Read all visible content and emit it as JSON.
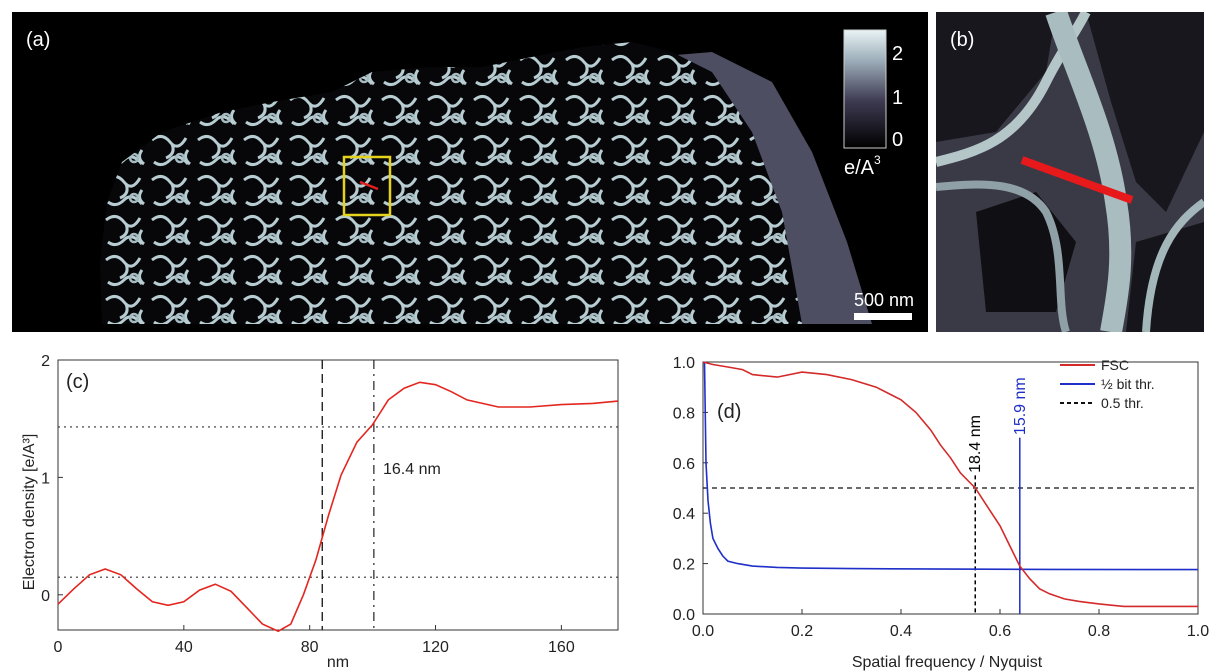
{
  "panel_a": {
    "label": "(a)",
    "colorbar": {
      "ticks": [
        "2",
        "1",
        "0"
      ],
      "unit": "e/A",
      "unit_sup": "3"
    },
    "scalebar": "500 nm"
  },
  "panel_b": {
    "label": "(b)"
  },
  "chart_data": [
    {
      "type": "line",
      "panel": "(c)",
      "xlabel": "nm",
      "ylabel": "Electron density [e/A³]",
      "xlim": [
        0,
        178
      ],
      "ylim": [
        -0.3,
        2.0
      ],
      "xticks": [
        0,
        40,
        80,
        120,
        160
      ],
      "yticks": [
        0,
        1,
        2
      ],
      "annotation": "16.4 nm",
      "vlines": [
        84,
        100.4
      ],
      "hlines": [
        0.15,
        1.43
      ],
      "series": [
        {
          "color": "#e3261f",
          "x": [
            0,
            5,
            10,
            15,
            20,
            25,
            30,
            35,
            40,
            45,
            50,
            55,
            60,
            65,
            70,
            74,
            78,
            82,
            86,
            90,
            95,
            100,
            105,
            110,
            115,
            120,
            125,
            130,
            140,
            150,
            160,
            170,
            178
          ],
          "y": [
            -0.08,
            0.05,
            0.17,
            0.22,
            0.17,
            0.05,
            -0.06,
            -0.09,
            -0.06,
            0.04,
            0.09,
            0.03,
            -0.11,
            -0.25,
            -0.31,
            -0.25,
            0.0,
            0.3,
            0.68,
            1.02,
            1.3,
            1.45,
            1.66,
            1.76,
            1.81,
            1.79,
            1.73,
            1.66,
            1.6,
            1.6,
            1.62,
            1.63,
            1.65
          ]
        }
      ]
    },
    {
      "type": "line",
      "panel": "(d)",
      "xlabel": "Spatial frequency / Nyquist",
      "xlim": [
        0,
        1.0
      ],
      "ylim": [
        0,
        1.0
      ],
      "xticks": [
        0.0,
        0.2,
        0.4,
        0.6,
        0.8,
        1.0
      ],
      "yticks": [
        0.0,
        0.2,
        0.4,
        0.6,
        0.8,
        1.0
      ],
      "hline": 0.5,
      "vlines": [
        {
          "x": 0.55,
          "label": "18.4 nm",
          "color": "#000000"
        },
        {
          "x": 0.64,
          "label": "15.9 nm",
          "color": "#1f2fc8"
        }
      ],
      "legend": {
        "placement": "top-right",
        "entries": [
          "FSC",
          "½ bit thr.",
          "0.5 thr."
        ]
      },
      "series": [
        {
          "name": "FSC",
          "color": "#d42a2a",
          "x": [
            0.0,
            0.02,
            0.05,
            0.08,
            0.1,
            0.15,
            0.2,
            0.25,
            0.3,
            0.35,
            0.4,
            0.43,
            0.46,
            0.48,
            0.5,
            0.52,
            0.54,
            0.55,
            0.57,
            0.6,
            0.62,
            0.64,
            0.66,
            0.68,
            0.7,
            0.73,
            0.76,
            0.8,
            0.85,
            0.9,
            0.95,
            1.0
          ],
          "y": [
            1.0,
            0.99,
            0.98,
            0.97,
            0.95,
            0.94,
            0.96,
            0.95,
            0.93,
            0.9,
            0.85,
            0.8,
            0.73,
            0.67,
            0.62,
            0.56,
            0.52,
            0.5,
            0.44,
            0.35,
            0.27,
            0.19,
            0.14,
            0.1,
            0.08,
            0.06,
            0.05,
            0.04,
            0.03,
            0.03,
            0.03,
            0.03
          ]
        },
        {
          "name": "½ bit thr.",
          "color": "#1f2fc8",
          "x": [
            0.003,
            0.006,
            0.01,
            0.015,
            0.02,
            0.03,
            0.04,
            0.05,
            0.07,
            0.1,
            0.15,
            0.2,
            0.3,
            0.5,
            0.7,
            1.0
          ],
          "y": [
            1.0,
            0.6,
            0.45,
            0.36,
            0.3,
            0.26,
            0.23,
            0.21,
            0.2,
            0.19,
            0.185,
            0.182,
            0.18,
            0.178,
            0.177,
            0.176
          ]
        }
      ]
    }
  ]
}
